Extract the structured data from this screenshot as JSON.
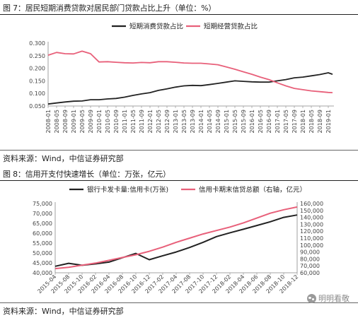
{
  "figures": [
    {
      "title": "图 7：居民短期消费贷款对居民部门贷款占比上升（单位：%）",
      "source": "资料来源：Wind，中信证券研究部"
    },
    {
      "title": "图 8：信用开支付快速增长（单位：万张，亿元）",
      "source": "资料来源：Wind，中信证券研究部"
    }
  ],
  "watermark": {
    "text": "明明看敬",
    "icon": "wechat-icon"
  },
  "chart_data": [
    {
      "type": "line",
      "title": "",
      "xlabel": "",
      "ylabel": "",
      "x_ticks": [
        "2008-01",
        "2008-05",
        "2008-09",
        "2009-01",
        "2009-05",
        "2009-09",
        "2010-01",
        "2010-05",
        "2010-09",
        "2011-01",
        "2011-05",
        "2011-09",
        "2012-01",
        "2012-05",
        "2012-09",
        "2013-01",
        "2013-05",
        "2013-09",
        "2014-01",
        "2014-05",
        "2014-09",
        "2015-01",
        "2015-05",
        "2015-09",
        "2016-01",
        "2016-05",
        "2016-09",
        "2017-01",
        "2017-05",
        "2017-09",
        "2018-01",
        "2018-05",
        "2018-09",
        "2019-01"
      ],
      "ylim": [
        0.05,
        0.3
      ],
      "y_ticks": [
        "0.050",
        "0.100",
        "0.150",
        "0.200",
        "0.250",
        "0.300"
      ],
      "y_tick_values": [
        0.05,
        0.1,
        0.15,
        0.2,
        0.25,
        0.3
      ],
      "grid": false,
      "legend": "top",
      "series": [
        {
          "name": "短期消费贷款占比",
          "color": "#222222",
          "x": [
            "2008-01",
            "2008-05",
            "2008-09",
            "2009-01",
            "2009-05",
            "2009-09",
            "2010-01",
            "2010-05",
            "2010-09",
            "2011-01",
            "2011-05",
            "2011-09",
            "2012-01",
            "2012-05",
            "2012-09",
            "2013-01",
            "2013-05",
            "2013-09",
            "2014-01",
            "2014-05",
            "2014-09",
            "2015-01",
            "2015-05",
            "2015-09",
            "2016-01",
            "2016-05",
            "2016-09",
            "2017-01",
            "2017-05",
            "2017-09",
            "2018-01",
            "2018-05",
            "2018-09",
            "2019-01",
            "2019-03"
          ],
          "values": [
            0.058,
            0.062,
            0.066,
            0.069,
            0.07,
            0.075,
            0.075,
            0.078,
            0.08,
            0.085,
            0.092,
            0.098,
            0.103,
            0.112,
            0.118,
            0.125,
            0.13,
            0.132,
            0.131,
            0.135,
            0.14,
            0.145,
            0.15,
            0.148,
            0.146,
            0.145,
            0.145,
            0.15,
            0.155,
            0.162,
            0.165,
            0.17,
            0.175,
            0.182,
            0.176
          ]
        },
        {
          "name": "短期经营贷款占比",
          "color": "#e8607a",
          "x": [
            "2008-01",
            "2008-05",
            "2008-09",
            "2009-01",
            "2009-05",
            "2009-09",
            "2010-01",
            "2010-05",
            "2010-09",
            "2011-01",
            "2011-05",
            "2011-09",
            "2012-01",
            "2012-05",
            "2012-09",
            "2013-01",
            "2013-05",
            "2013-09",
            "2014-01",
            "2014-05",
            "2014-09",
            "2015-01",
            "2015-05",
            "2015-09",
            "2016-01",
            "2016-05",
            "2016-09",
            "2017-01",
            "2017-05",
            "2017-09",
            "2018-01",
            "2018-05",
            "2018-09",
            "2019-01",
            "2019-03"
          ],
          "values": [
            0.252,
            0.263,
            0.258,
            0.257,
            0.268,
            0.258,
            0.225,
            0.226,
            0.224,
            0.222,
            0.221,
            0.223,
            0.222,
            0.226,
            0.226,
            0.224,
            0.221,
            0.22,
            0.22,
            0.217,
            0.214,
            0.205,
            0.196,
            0.186,
            0.176,
            0.165,
            0.155,
            0.142,
            0.13,
            0.12,
            0.115,
            0.11,
            0.107,
            0.104,
            0.103
          ]
        }
      ]
    },
    {
      "type": "line",
      "title": "",
      "xlabel": "",
      "ylabel": "",
      "ylabel_right": "",
      "categories": [
        "2015-04",
        "2015-08",
        "2015-10",
        "2016-02",
        "2016-04",
        "2016-08",
        "2016-10",
        "2016-12",
        "2017-02",
        "2017-04",
        "2017-08",
        "2017-10",
        "2017-12",
        "2018-02",
        "2018-04",
        "2018-06",
        "2018-08",
        "2018-10",
        "2018-12"
      ],
      "ylim": [
        40000,
        75000
      ],
      "y_ticks": [
        "40,000",
        "45,000",
        "50,000",
        "55,000",
        "60,000",
        "65,000",
        "70,000",
        "75,000"
      ],
      "y_tick_values": [
        40000,
        45000,
        50000,
        55000,
        60000,
        65000,
        70000,
        75000
      ],
      "ylim_right": [
        60000,
        160000
      ],
      "y_ticks_right": [
        "60,000",
        "70,000",
        "80,000",
        "90,000",
        "100,000",
        "110,000",
        "120,000",
        "130,000",
        "140,000",
        "150,000",
        "160,000"
      ],
      "y_tick_values_right": [
        60000,
        70000,
        80000,
        90000,
        100000,
        110000,
        120000,
        130000,
        140000,
        150000,
        160000
      ],
      "grid": false,
      "legend": "top",
      "series": [
        {
          "name": "银行卡发卡量:信用卡(万张)",
          "axis": "left",
          "color": "#222222",
          "x": [
            0,
            1,
            2,
            3,
            4,
            5,
            6,
            7,
            8,
            9,
            10,
            11,
            12,
            13,
            14,
            15,
            16,
            17,
            18
          ],
          "values": [
            43300,
            44800,
            43800,
            44500,
            45400,
            47600,
            49800,
            46600,
            48600,
            50500,
            52800,
            55400,
            58300,
            60200,
            62000,
            63900,
            65800,
            68000,
            69200
          ]
        },
        {
          "name": "信用卡期末信贷总额（右轴，亿元）",
          "axis": "right",
          "color": "#e8607a",
          "x": [
            0,
            1,
            2,
            3,
            4,
            5,
            6,
            7,
            8,
            9,
            10,
            11,
            12,
            13,
            14,
            15,
            16,
            17,
            18
          ],
          "values": [
            66000,
            68000,
            71000,
            74000,
            78000,
            82000,
            86000,
            91000,
            97000,
            104000,
            110000,
            116000,
            121000,
            126000,
            132000,
            139000,
            146000,
            151000,
            155000
          ]
        }
      ]
    }
  ]
}
